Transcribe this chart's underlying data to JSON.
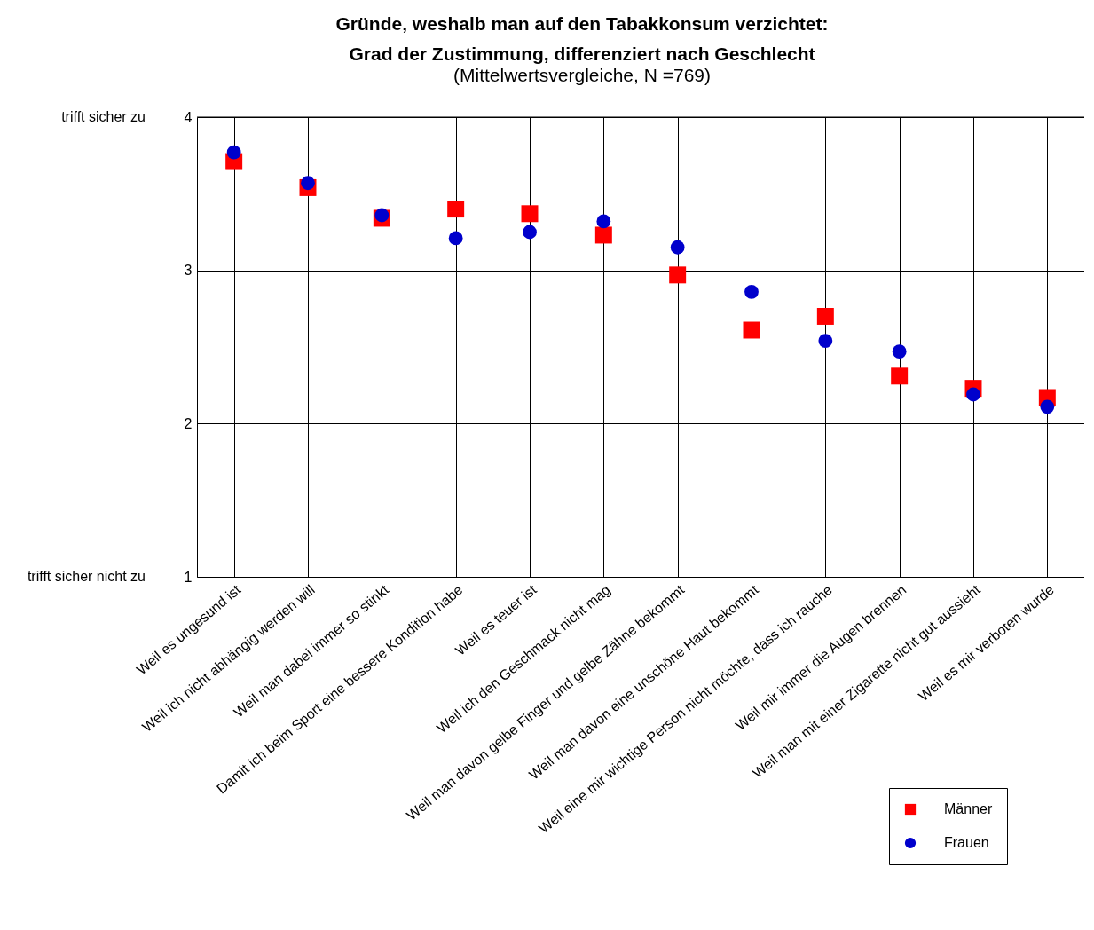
{
  "chart_data": {
    "type": "scatter",
    "title": [
      "Gründe, weshalb man auf den Tabakkonsum verzichtet:",
      "Grad der Zustimmung, differenziert nach Geschlecht"
    ],
    "subtitle": "(Mittelwertsvergleiche, N =769)",
    "categories": [
      "Weil es ungesund ist",
      "Weil ich nicht abhängig werden will",
      "Weil man dabei immer so stinkt",
      "Damit ich beim Sport eine bessere Kondition habe",
      "Weil es teuer ist",
      "Weil ich den Geschmack nicht mag",
      "Weil man davon gelbe Finger und gelbe Zähne bekommt",
      "Weil man davon eine unschöne Haut bekommt",
      "Weil eine mir wichtige Person nicht möchte, dass ich rauche",
      "Weil mir immer die Augen brennen",
      "Weil man mit einer Zigarette nicht gut aussieht",
      "Weil es mir verboten wurde"
    ],
    "series": [
      {
        "name": "Männer",
        "color": "#ff0000",
        "marker": "square",
        "values": [
          3.71,
          3.54,
          3.34,
          3.4,
          3.37,
          3.23,
          2.97,
          2.61,
          2.7,
          2.31,
          2.23,
          2.17
        ]
      },
      {
        "name": "Frauen",
        "color": "#0000cc",
        "marker": "circle",
        "values": [
          3.77,
          3.57,
          3.36,
          3.21,
          3.25,
          3.32,
          3.15,
          2.86,
          2.54,
          2.47,
          2.19,
          2.11
        ]
      }
    ],
    "ylim": [
      1,
      4
    ],
    "yticks": [
      1,
      2,
      3,
      4
    ],
    "grid": true,
    "legend": "bottom right",
    "annotations": [
      "trifft sicher zu",
      "trifft sicher nicht zu"
    ]
  }
}
